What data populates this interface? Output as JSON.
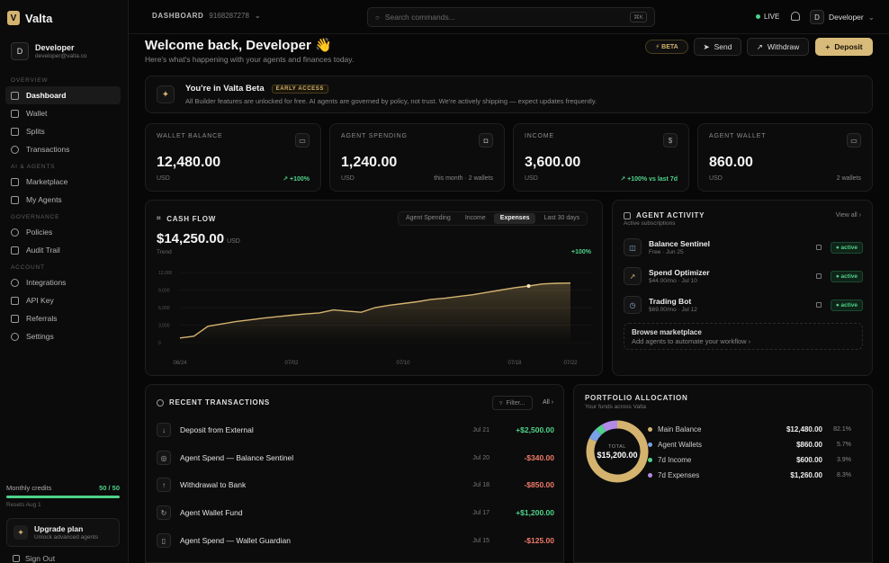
{
  "app": {
    "name": "Valta"
  },
  "user": {
    "name": "Developer",
    "email": "developer@valta.co",
    "initial": "D"
  },
  "nav": {
    "overview_label": "OVERVIEW",
    "overview": [
      "Dashboard",
      "Wallet",
      "Splits",
      "Transactions"
    ],
    "ai_label": "AI & AGENTS",
    "ai": [
      "Marketplace",
      "My Agents"
    ],
    "gov_label": "GOVERNANCE",
    "gov": [
      "Policies",
      "Audit Trail"
    ],
    "acct_label": "ACCOUNT",
    "acct": [
      "Integrations",
      "API Key",
      "Referrals",
      "Settings"
    ]
  },
  "credits": {
    "label": "Monthly credits",
    "value": "50 / 50",
    "fraction": 1.0,
    "reset": "Resets Aug 1"
  },
  "upgrade": {
    "title": "Upgrade plan",
    "sub": "Unlock advanced agents"
  },
  "signout": "Sign Out",
  "topbar": {
    "crumb": "DASHBOARD",
    "crumb_id": "9168287278",
    "search_placeholder": "Search commands...",
    "shortcut": "⌘K",
    "live": "LIVE",
    "user": "Developer"
  },
  "header": {
    "title": "Welcome back, Developer 👋",
    "subtitle": "Here's what's happening with your agents and finances today.",
    "beta": "⚡ BETA",
    "send": "Send",
    "withdraw": "Withdraw",
    "deposit": "Deposit"
  },
  "beta_banner": {
    "title": "You're in Valta Beta",
    "badge": "EARLY ACCESS",
    "text": "All Builder features are unlocked for free. AI agents are governed by policy, not trust. We're actively shipping — expect updates frequently."
  },
  "stats": [
    {
      "label": "WALLET BALANCE",
      "value": "12,480.00",
      "unit": "USD",
      "note": "↗ +100%"
    },
    {
      "label": "AGENT SPENDING",
      "value": "1,240.00",
      "unit": "USD",
      "note": "this month · 2 wallets"
    },
    {
      "label": "INCOME",
      "value": "3,600.00",
      "unit": "USD",
      "note": "↗ +100% vs last 7d"
    },
    {
      "label": "AGENT WALLET",
      "value": "860.00",
      "unit": "USD",
      "note": "2 wallets"
    }
  ],
  "cashflow": {
    "title": "CASH FLOW",
    "tabs": [
      "Agent Spending",
      "Income",
      "Expenses",
      "Last 30 days"
    ],
    "value": "$14,250.00",
    "unit": "USD",
    "trend": "Trend",
    "pct": "+100%"
  },
  "chart_data": {
    "type": "area",
    "title": "",
    "x": [
      "06/24",
      "06/25",
      "06/26",
      "06/27",
      "06/28",
      "06/29",
      "06/30",
      "07/01",
      "07/02",
      "07/03",
      "07/04",
      "07/05",
      "07/06",
      "07/07",
      "07/08",
      "07/09",
      "07/10",
      "07/11",
      "07/12",
      "07/13",
      "07/14",
      "07/15",
      "07/16",
      "07/17",
      "07/18",
      "07/19",
      "07/20",
      "07/21",
      "07/22"
    ],
    "values": [
      800,
      1100,
      2800,
      3200,
      3600,
      3900,
      4200,
      4450,
      4700,
      4900,
      5100,
      5600,
      5400,
      5200,
      6000,
      6400,
      6700,
      7000,
      7400,
      7600,
      7900,
      8200,
      8600,
      9000,
      9400,
      9700,
      10050,
      10150,
      10200
    ],
    "xticks": [
      "06/24",
      "07/02",
      "07/10",
      "07/18",
      "07/22"
    ],
    "yticks": [
      "12,000",
      "9,000",
      "6,000",
      "3,000",
      "0"
    ],
    "ylim": [
      0,
      12000
    ],
    "color": "#d4b36f"
  },
  "activity": {
    "title": "AGENT ACTIVITY",
    "sub": "Active subscriptions",
    "view_all": "View all ›",
    "items": [
      {
        "name": "Balance Sentinel",
        "meta": "Free · Jun 25",
        "status": "● active",
        "icon": "◫"
      },
      {
        "name": "Spend Optimizer",
        "meta": "$44.00/mo · Jul 10",
        "status": "● active",
        "icon": "↗"
      },
      {
        "name": "Trading Bot",
        "meta": "$69.00/mo · Jul 12",
        "status": "● active",
        "icon": "◷"
      }
    ],
    "browse_title": "Browse marketplace",
    "browse_sub": "Add agents to automate your workflow ›"
  },
  "transactions": {
    "title": "RECENT TRANSACTIONS",
    "filter": "Filter...",
    "all": "All ›",
    "rows": [
      {
        "name": "Deposit from External",
        "date": "Jul 21",
        "amount": "+$2,500.00",
        "sign": "pos",
        "icon": "↓"
      },
      {
        "name": "Agent Spend — Balance Sentinel",
        "date": "Jul 20",
        "amount": "-$340.00",
        "sign": "neg",
        "icon": "◎"
      },
      {
        "name": "Withdrawal to Bank",
        "date": "Jul 18",
        "amount": "-$850.00",
        "sign": "neg",
        "icon": "↑"
      },
      {
        "name": "Agent Wallet Fund",
        "date": "Jul 17",
        "amount": "+$1,200.00",
        "sign": "pos",
        "icon": "↻"
      },
      {
        "name": "Agent Spend — Wallet Guardian",
        "date": "Jul 15",
        "amount": "-$125.00",
        "sign": "neg",
        "icon": "▯"
      }
    ]
  },
  "portfolio": {
    "title": "PORTFOLIO ALLOCATION",
    "sub": "Your funds across Valta",
    "total_label": "TOTAL",
    "total": "$15,200.00",
    "rows": [
      {
        "name": "Main Balance",
        "value": "$12,480.00",
        "pct": "82.1%",
        "share": 82.1,
        "color": "#d4b36f"
      },
      {
        "name": "Agent Wallets",
        "value": "$860.00",
        "pct": "5.7%",
        "share": 5.7,
        "color": "#7aa2e8"
      },
      {
        "name": "7d Income",
        "value": "$600.00",
        "pct": "3.9%",
        "share": 3.9,
        "color": "#4fd28a"
      },
      {
        "name": "7d Expenses",
        "value": "$1,260.00",
        "pct": "8.3%",
        "share": 8.3,
        "color": "#b28be8"
      }
    ]
  }
}
